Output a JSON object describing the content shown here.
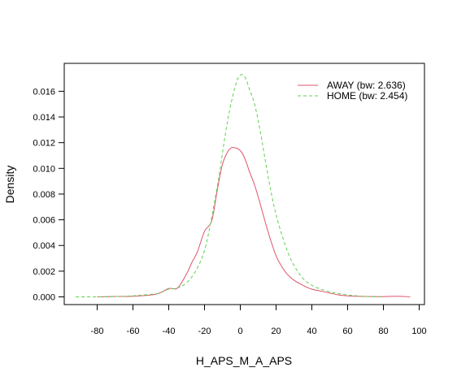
{
  "chart_data": {
    "type": "line",
    "title": "",
    "xlabel": "H_APS_M_A_APS",
    "ylabel": "Density",
    "xlim": [
      -100,
      100
    ],
    "ylim": [
      0,
      0.0175
    ],
    "xticks": [
      -80,
      -60,
      -40,
      -20,
      0,
      20,
      40,
      60,
      80,
      100
    ],
    "yticks": [
      "0.000",
      "0.002",
      "0.004",
      "0.006",
      "0.008",
      "0.010",
      "0.012",
      "0.014",
      "0.016"
    ],
    "legend_position": "top-right",
    "grid": false,
    "series": [
      {
        "name": "AWAY (bw: 2.636)",
        "color": "#df536b",
        "dash": "solid",
        "x": [
          -80,
          -70,
          -60,
          -50,
          -45,
          -40,
          -35,
          -30,
          -27,
          -24,
          -20,
          -16,
          -13,
          -10,
          -7,
          -5,
          -3,
          -1,
          1,
          3,
          5,
          8,
          11,
          14,
          17,
          20,
          23,
          26,
          30,
          35,
          40,
          45,
          50,
          55,
          60,
          70,
          80,
          88,
          95
        ],
        "y": [
          0,
          3e-05,
          5e-05,
          0.00015,
          0.0003,
          0.00065,
          0.0007,
          0.0018,
          0.0027,
          0.0035,
          0.0051,
          0.0059,
          0.0082,
          0.0103,
          0.0113,
          0.0116,
          0.0116,
          0.0115,
          0.0112,
          0.0106,
          0.0098,
          0.0087,
          0.0073,
          0.0058,
          0.0044,
          0.0032,
          0.0024,
          0.0018,
          0.0013,
          0.0009,
          0.0006,
          0.00045,
          0.0003,
          0.00015,
          8e-05,
          3e-05,
          2e-05,
          5e-05,
          0.0
        ]
      },
      {
        "name": "HOME (bw: 2.454)",
        "color": "#61d04f",
        "dash": "dashed",
        "x": [
          -92,
          -80,
          -70,
          -60,
          -50,
          -45,
          -40,
          -35,
          -30,
          -25,
          -20,
          -16,
          -12,
          -9,
          -6,
          -3,
          -1,
          1,
          3,
          5,
          8,
          11,
          14,
          17,
          20,
          24,
          28,
          32,
          36,
          40,
          45,
          50,
          55,
          60,
          65,
          70,
          75,
          80
        ],
        "y": [
          0,
          0,
          3e-05,
          8e-05,
          0.0002,
          0.0003,
          0.0006,
          0.0007,
          0.0011,
          0.002,
          0.0036,
          0.0062,
          0.0093,
          0.0121,
          0.0145,
          0.0163,
          0.0171,
          0.0173,
          0.017,
          0.0162,
          0.015,
          0.013,
          0.0106,
          0.0083,
          0.0064,
          0.0045,
          0.003,
          0.002,
          0.0013,
          0.0009,
          0.0006,
          0.0004,
          0.00025,
          0.00015,
          8e-05,
          3e-05,
          1e-05,
          0
        ]
      }
    ]
  }
}
